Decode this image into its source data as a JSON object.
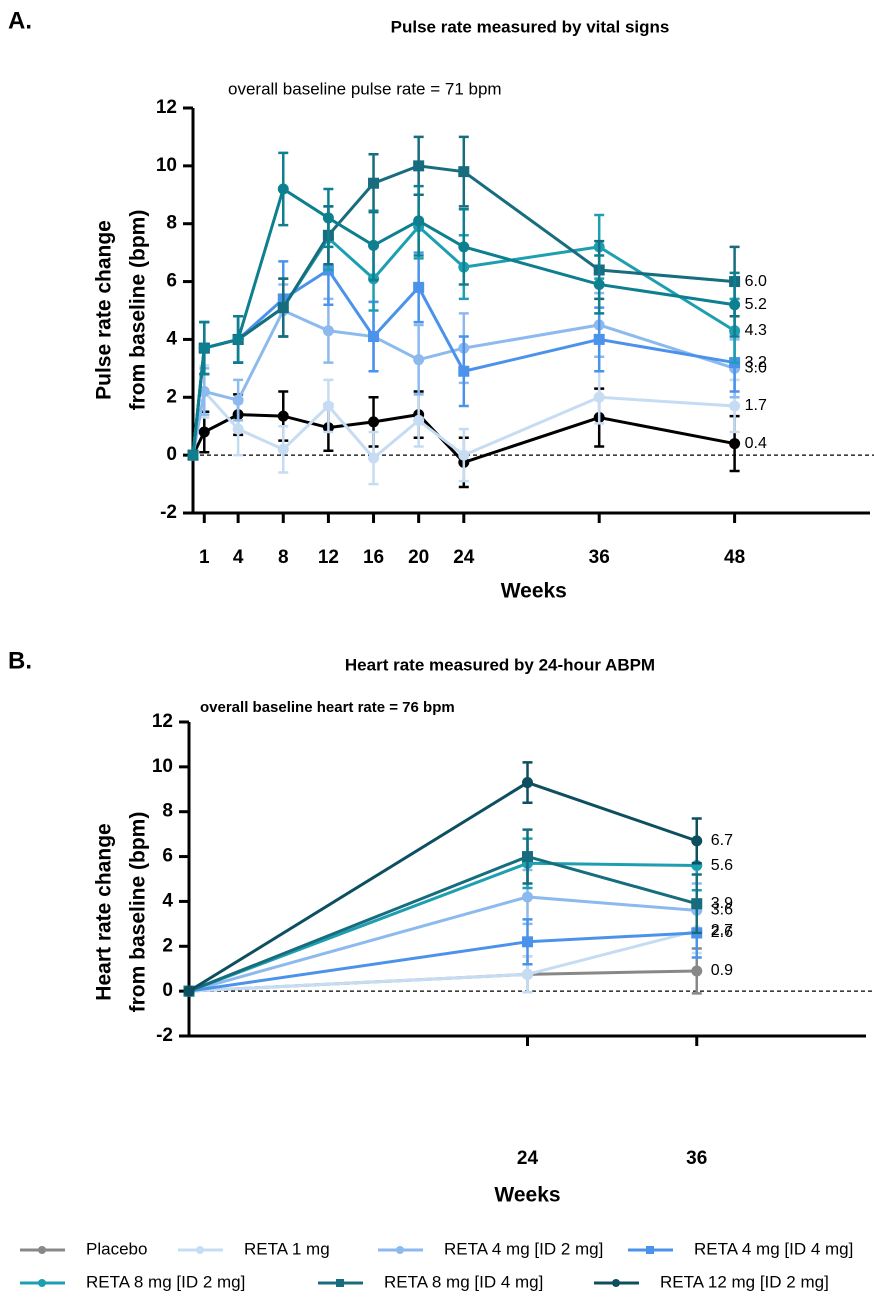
{
  "chart_data": [
    {
      "type": "line",
      "panel_label": "A.",
      "title": "Pulse rate measured by vital signs",
      "annotation": "overall baseline pulse rate = 71 bpm",
      "ylabel": [
        "Pulse rate change",
        "from baseline (bpm)"
      ],
      "xlabel": "Weeks",
      "x": [
        0,
        1,
        4,
        8,
        12,
        16,
        20,
        24,
        36,
        48
      ],
      "xlim": [
        0,
        60
      ],
      "xticks": [
        1,
        4,
        8,
        12,
        16,
        20,
        24,
        36,
        48
      ],
      "ylim": [
        -2,
        12
      ],
      "yticks": [
        -2,
        0,
        2,
        4,
        6,
        8,
        10,
        12
      ],
      "zero_line": true,
      "series": [
        {
          "name": "Placebo",
          "color": "#000000",
          "marker": "circle",
          "values": [
            0,
            0.8,
            1.4,
            1.35,
            0.95,
            1.15,
            1.4,
            -0.25,
            1.3,
            0.4
          ],
          "errors": [
            0,
            0.7,
            0.7,
            0.85,
            0.8,
            0.85,
            0.8,
            0.85,
            1.0,
            0.95
          ],
          "value_labels": [
            null,
            null,
            null,
            null,
            null,
            null,
            null,
            null,
            null,
            "0.4"
          ]
        },
        {
          "name": "RETA 1 mg",
          "color": "#c6dcf3",
          "marker": "circle",
          "values": [
            0,
            2.2,
            0.9,
            0.2,
            1.7,
            -0.1,
            1.2,
            0.0,
            2.0,
            1.7
          ],
          "errors": [
            0,
            0.9,
            0.9,
            0.8,
            0.9,
            0.9,
            0.9,
            0.9,
            0.9,
            0.9
          ],
          "value_labels": [
            null,
            null,
            null,
            null,
            null,
            null,
            null,
            null,
            null,
            "1.7"
          ]
        },
        {
          "name": "RETA 4 mg [ID 2 mg]",
          "color": "#8dbaee",
          "marker": "circle",
          "values": [
            0,
            2.2,
            1.9,
            5.0,
            4.3,
            4.1,
            3.3,
            3.7,
            4.5,
            3.0
          ],
          "errors": [
            0,
            0.8,
            0.7,
            0.9,
            1.1,
            1.2,
            1.2,
            1.2,
            1.1,
            1.0
          ],
          "value_labels": [
            null,
            null,
            null,
            null,
            null,
            null,
            null,
            null,
            null,
            "3.0"
          ]
        },
        {
          "name": "RETA 4 mg [ID 4 mg]",
          "color": "#4b93ea",
          "marker": "square",
          "values": [
            0,
            3.7,
            4.0,
            5.4,
            6.4,
            4.1,
            5.8,
            2.9,
            4.0,
            3.2
          ],
          "errors": [
            0,
            0.9,
            0.8,
            1.3,
            1.2,
            1.2,
            1.2,
            1.2,
            1.1,
            1.0
          ],
          "value_labels": [
            null,
            null,
            null,
            null,
            null,
            null,
            null,
            null,
            null,
            "3.2"
          ]
        },
        {
          "name": "RETA 8 mg [ID 2 mg]",
          "color": "#1e9fb1",
          "marker": "circle",
          "values": [
            0,
            3.7,
            4.0,
            5.1,
            7.5,
            6.1,
            7.9,
            6.5,
            7.2,
            4.3
          ],
          "errors": [
            0,
            0.9,
            0.8,
            1.0,
            1.1,
            1.1,
            1.1,
            1.1,
            1.1,
            1.1
          ],
          "value_labels": [
            null,
            null,
            null,
            null,
            null,
            null,
            null,
            null,
            null,
            "4.3"
          ]
        },
        {
          "name": "RETA 8 mg [ID 4 mg]",
          "color": "#176d7e",
          "marker": "square",
          "values": [
            0,
            3.7,
            4.0,
            5.1,
            7.6,
            9.4,
            10.0,
            9.8,
            6.4,
            6.0
          ],
          "errors": [
            0,
            0.9,
            0.8,
            1.0,
            1.0,
            1.0,
            1.0,
            1.2,
            1.0,
            1.2
          ],
          "value_labels": [
            null,
            null,
            null,
            null,
            null,
            null,
            null,
            null,
            null,
            "6.0"
          ]
        },
        {
          "name": "RETA 12 mg [ID 2 mg]",
          "color": "#0d7f8f",
          "marker": "circle",
          "values": [
            0,
            3.7,
            4.0,
            9.2,
            8.2,
            7.25,
            8.1,
            7.2,
            5.9,
            5.2
          ],
          "errors": [
            0,
            0.9,
            0.8,
            1.25,
            1.0,
            1.2,
            1.2,
            1.3,
            1.0,
            1.1
          ],
          "value_labels": [
            null,
            null,
            null,
            null,
            null,
            null,
            null,
            null,
            null,
            "5.2"
          ]
        }
      ]
    },
    {
      "type": "line",
      "panel_label": "B.",
      "title": "Heart rate measured by 24-hour ABPM",
      "annotation": "overall baseline heart rate = 76 bpm",
      "ylabel": [
        "Heart rate change",
        "from baseline (bpm)"
      ],
      "xlabel": "Weeks",
      "x": [
        0,
        24,
        36
      ],
      "xlim": [
        0,
        48
      ],
      "xticks": [
        24,
        36
      ],
      "ylim": [
        -2,
        12
      ],
      "yticks": [
        -2,
        0,
        2,
        4,
        6,
        8,
        10,
        12
      ],
      "zero_line": true,
      "series": [
        {
          "name": "Placebo",
          "color": "#888888",
          "marker": "circle",
          "values": [
            0,
            0.75,
            0.9
          ],
          "errors": [
            0,
            0.8,
            1.0
          ],
          "value_labels": [
            null,
            null,
            "0.9"
          ]
        },
        {
          "name": "RETA 1 mg",
          "color": "#c6dcf3",
          "marker": "circle",
          "values": [
            0,
            0.75,
            2.7
          ],
          "errors": [
            0,
            0.8,
            1.0
          ],
          "value_labels": [
            null,
            null,
            "2.7"
          ]
        },
        {
          "name": "RETA 4 mg [ID 2 mg]",
          "color": "#8dbaee",
          "marker": "circle",
          "values": [
            0,
            4.2,
            3.6
          ],
          "errors": [
            0,
            1.2,
            1.2
          ],
          "value_labels": [
            null,
            null,
            "3.6"
          ]
        },
        {
          "name": "RETA 4 mg [ID 4 mg]",
          "color": "#4b93ea",
          "marker": "square",
          "values": [
            0,
            2.2,
            2.6
          ],
          "errors": [
            0,
            1.0,
            1.1
          ],
          "value_labels": [
            null,
            null,
            "2.6"
          ]
        },
        {
          "name": "RETA 8 mg [ID 2 mg]",
          "color": "#1e9fb1",
          "marker": "circle",
          "values": [
            0,
            5.7,
            5.6
          ],
          "errors": [
            0,
            1.1,
            1.1
          ],
          "value_labels": [
            null,
            null,
            "5.6"
          ]
        },
        {
          "name": "RETA 8 mg [ID 4 mg]",
          "color": "#176d7e",
          "marker": "square",
          "values": [
            0,
            6.0,
            3.9
          ],
          "errors": [
            0,
            1.2,
            1.3
          ],
          "value_labels": [
            null,
            null,
            "3.9"
          ]
        },
        {
          "name": "RETA 12 mg [ID 2 mg]",
          "color": "#0d4f5f",
          "marker": "circle",
          "values": [
            0,
            9.3,
            6.7
          ],
          "errors": [
            0,
            0.9,
            1.0
          ],
          "value_labels": [
            null,
            null,
            "6.7"
          ]
        }
      ]
    }
  ]
}
